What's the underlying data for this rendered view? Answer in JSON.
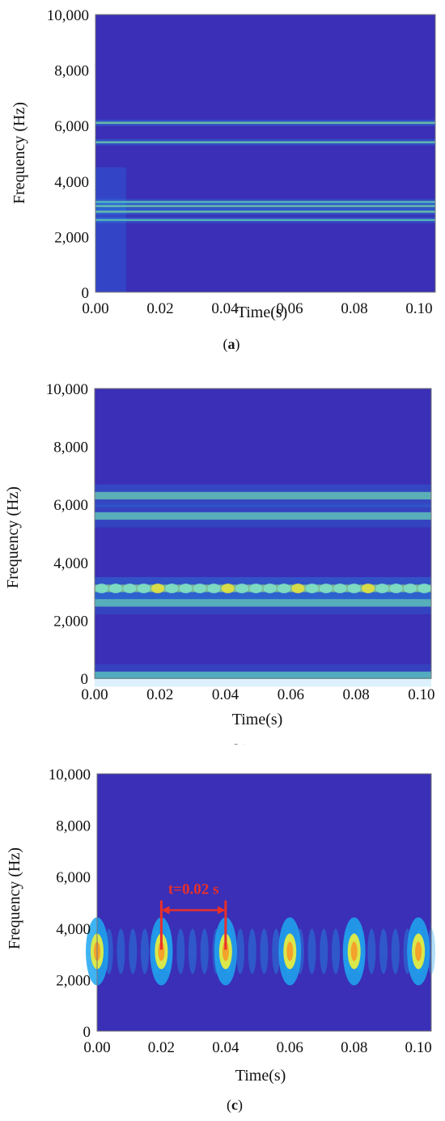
{
  "chart_data": [
    {
      "type": "heatmap",
      "panel_label": "a",
      "xlabel": "Time(s)",
      "ylabel": "Frequency (Hz)",
      "xlim": [
        0,
        0.105
      ],
      "ylim": [
        0,
        10000
      ],
      "x_ticks": [
        "0.00",
        "0.02",
        "0.04",
        "0.06",
        "0.08",
        "0.10"
      ],
      "y_ticks": [
        "0",
        "2,000",
        "4,000",
        "6,000",
        "8,000",
        "10,000"
      ],
      "colors": {
        "background": "#3a2fb6",
        "mid": "#1ea7f0",
        "high": "#cfe84a"
      },
      "bands": [
        {
          "freq": 6100,
          "intensity": 0.75
        },
        {
          "freq": 5400,
          "intensity": 0.65
        },
        {
          "freq": 3250,
          "intensity": 0.55
        },
        {
          "freq": 3100,
          "intensity": 0.7
        },
        {
          "freq": 2900,
          "intensity": 0.7
        },
        {
          "freq": 2600,
          "intensity": 0.55
        }
      ]
    },
    {
      "type": "heatmap",
      "panel_label": "b",
      "xlabel": "Time(s)",
      "ylabel": "Frequency (Hz)",
      "xlim": [
        0,
        0.103
      ],
      "ylim": [
        0,
        10000
      ],
      "x_ticks": [
        "0.00",
        "0.02",
        "0.04",
        "0.06",
        "0.08",
        "0.10"
      ],
      "y_ticks": [
        "0",
        "2,000",
        "4,000",
        "6,000",
        "8,000",
        "10,000"
      ],
      "colors": {
        "background": "#3a2fb6",
        "mid": "#1ea7f0",
        "high": "#e8e23a"
      },
      "bands": [
        {
          "freq": 6300,
          "intensity": 0.55
        },
        {
          "freq": 5600,
          "intensity": 0.5
        },
        {
          "freq": 3100,
          "intensity": 0.85
        },
        {
          "freq": 2600,
          "intensity": 0.5
        },
        {
          "freq": 100,
          "intensity": 0.45
        }
      ]
    },
    {
      "type": "heatmap",
      "panel_label": "c",
      "xlabel": "Time(s)",
      "ylabel": "Frequency (Hz)",
      "xlim": [
        0,
        0.104
      ],
      "ylim": [
        0,
        10000
      ],
      "x_ticks": [
        "0.00",
        "0.02",
        "0.04",
        "0.06",
        "0.08",
        "0.10"
      ],
      "y_ticks": [
        "0",
        "2,000",
        "4,000",
        "6,000",
        "8,000",
        "10,000"
      ],
      "colors": {
        "background": "#3a2fb6",
        "mid": "#1ea7f0",
        "high": "#f3a22b",
        "peak": "#e8302a"
      },
      "peak_freq": 3100,
      "peak_times": [
        0.0,
        0.02,
        0.04,
        0.06,
        0.08,
        0.1
      ],
      "annotation": {
        "text": "t=0.02 s",
        "t_start": 0.02,
        "t_end": 0.04,
        "arrow_freq": 4700,
        "color": "#e8302a"
      }
    }
  ]
}
